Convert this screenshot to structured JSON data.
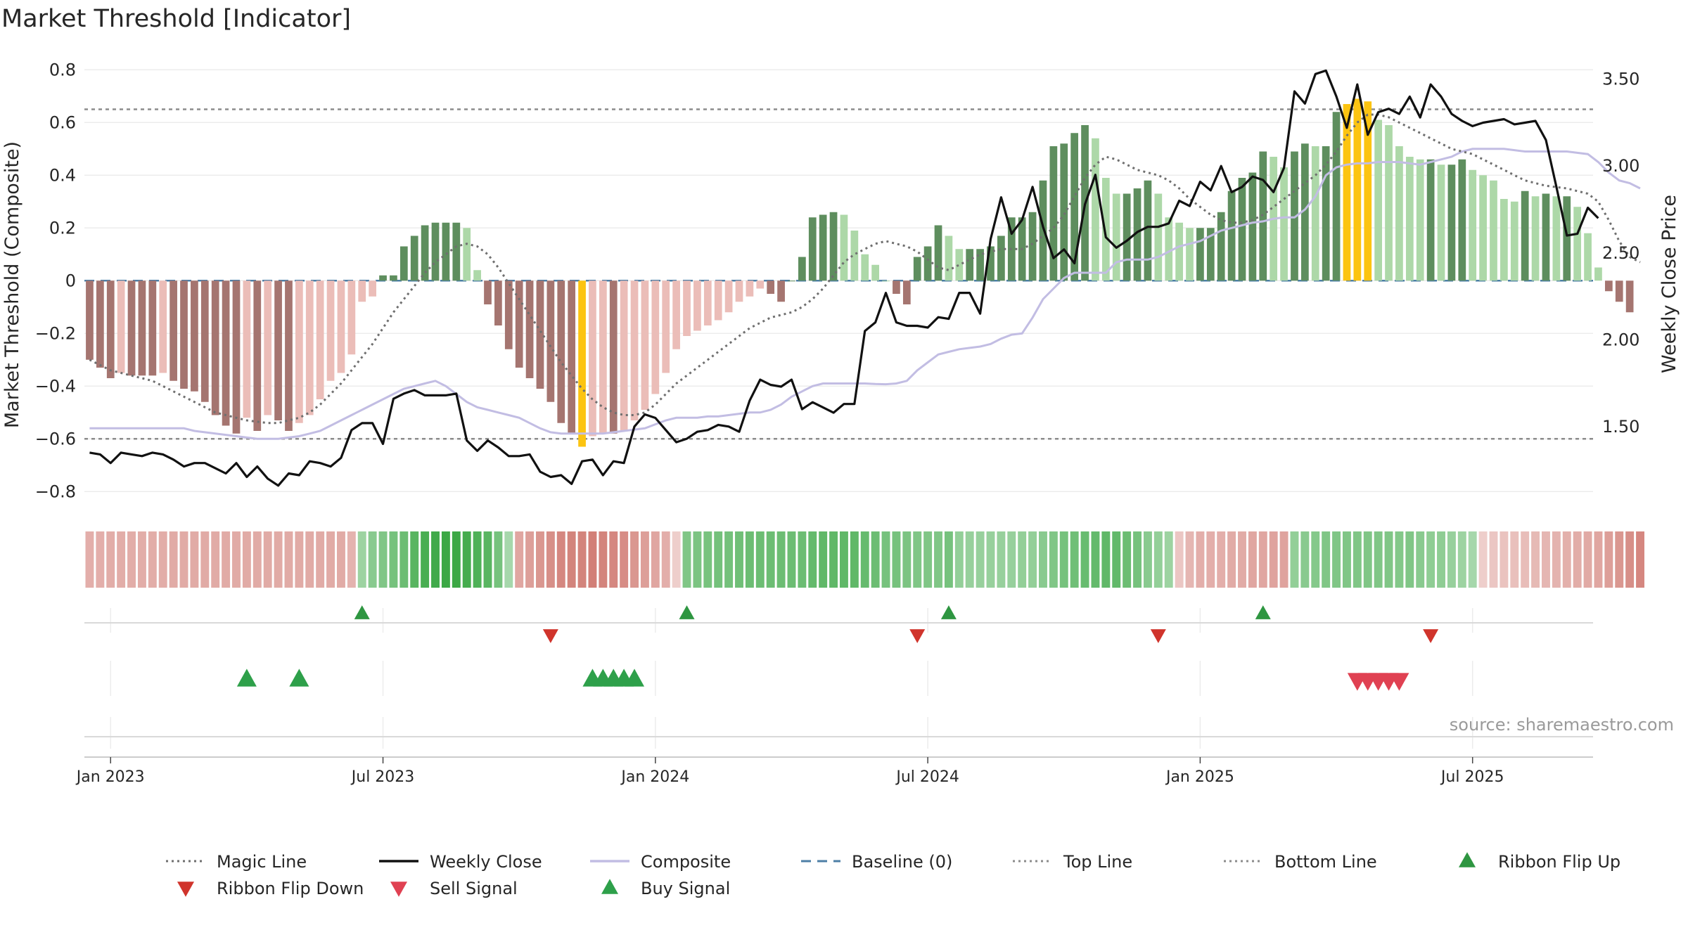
{
  "chart_data": {
    "type": "bar",
    "title": "Market Threshold [Indicator]",
    "source": "source: sharemaestro.com",
    "ylabel_left": "Market Threshold (Composite)",
    "ylabel_right": "Weekly Close Price",
    "ylim_left": [
      -0.85,
      0.83
    ],
    "ylim_right": [
      1.05,
      3.6
    ],
    "y_ticks_left": [
      {
        "v": 0.8,
        "label": "0.8"
      },
      {
        "v": 0.6,
        "label": "0.6"
      },
      {
        "v": 0.4,
        "label": "0.4"
      },
      {
        "v": 0.2,
        "label": "0.2"
      },
      {
        "v": 0,
        "label": "0"
      },
      {
        "v": -0.2,
        "label": "−0.2"
      },
      {
        "v": -0.4,
        "label": "−0.4"
      },
      {
        "v": -0.6,
        "label": "−0.6"
      },
      {
        "v": -0.8,
        "label": "−0.8"
      }
    ],
    "y_ticks_right": [
      {
        "v": 3.5,
        "label": "3.50"
      },
      {
        "v": 3.0,
        "label": "3.00"
      },
      {
        "v": 2.5,
        "label": "2.50"
      },
      {
        "v": 2.0,
        "label": "2.00"
      },
      {
        "v": 1.5,
        "label": "1.50"
      }
    ],
    "x_ticks": [
      {
        "week": 2,
        "label": "Jan 2023"
      },
      {
        "week": 28,
        "label": "Jul 2023"
      },
      {
        "week": 54,
        "label": "Jan 2024"
      },
      {
        "week": 80,
        "label": "Jul 2024"
      },
      {
        "week": 106,
        "label": "Jan 2025"
      },
      {
        "week": 132,
        "label": "Jul 2025"
      }
    ],
    "grid": true,
    "top_line": 0.65,
    "bottom_line": -0.6,
    "baseline": 0,
    "composite": [
      -0.56,
      -0.56,
      -0.56,
      -0.56,
      -0.56,
      -0.56,
      -0.56,
      -0.56,
      -0.56,
      -0.56,
      -0.57,
      -0.575,
      -0.58,
      -0.585,
      -0.59,
      -0.595,
      -0.6,
      -0.6,
      -0.6,
      -0.595,
      -0.59,
      -0.58,
      -0.57,
      -0.55,
      -0.53,
      -0.51,
      -0.49,
      -0.47,
      -0.45,
      -0.43,
      -0.41,
      -0.4,
      -0.39,
      -0.38,
      -0.4,
      -0.43,
      -0.46,
      -0.48,
      -0.49,
      -0.5,
      -0.51,
      -0.52,
      -0.54,
      -0.56,
      -0.575,
      -0.58,
      -0.58,
      -0.58,
      -0.58,
      -0.58,
      -0.575,
      -0.57,
      -0.565,
      -0.56,
      -0.545,
      -0.53,
      -0.52,
      -0.52,
      -0.52,
      -0.515,
      -0.515,
      -0.51,
      -0.505,
      -0.5,
      -0.5,
      -0.49,
      -0.47,
      -0.44,
      -0.42,
      -0.4,
      -0.39,
      -0.39,
      -0.39,
      -0.39,
      -0.39,
      -0.392,
      -0.393,
      -0.39,
      -0.38,
      -0.34,
      -0.31,
      -0.28,
      -0.27,
      -0.26,
      -0.255,
      -0.25,
      -0.24,
      -0.22,
      -0.205,
      -0.2,
      -0.14,
      -0.07,
      -0.03,
      0.01,
      0.03,
      0.03,
      0.03,
      0.03,
      0.07,
      0.08,
      0.08,
      0.08,
      0.09,
      0.11,
      0.13,
      0.14,
      0.15,
      0.17,
      0.19,
      0.2,
      0.21,
      0.22,
      0.225,
      0.235,
      0.24,
      0.24,
      0.27,
      0.32,
      0.4,
      0.43,
      0.44,
      0.445,
      0.445,
      0.45,
      0.45,
      0.45,
      0.445,
      0.44,
      0.45,
      0.46,
      0.47,
      0.49,
      0.5,
      0.5,
      0.5,
      0.5,
      0.495,
      0.49,
      0.49,
      0.49,
      0.49,
      0.49,
      0.485,
      0.48,
      0.45,
      0.41,
      0.38,
      0.37,
      0.35
    ],
    "series": [
      {
        "name": "Magic Line",
        "values": [
          -0.3,
          -0.32,
          -0.34,
          -0.35,
          -0.36,
          -0.37,
          -0.38,
          -0.4,
          -0.42,
          -0.44,
          -0.46,
          -0.48,
          -0.5,
          -0.51,
          -0.52,
          -0.53,
          -0.535,
          -0.54,
          -0.54,
          -0.53,
          -0.52,
          -0.5,
          -0.47,
          -0.43,
          -0.39,
          -0.34,
          -0.29,
          -0.24,
          -0.18,
          -0.12,
          -0.07,
          -0.02,
          0.03,
          0.07,
          0.1,
          0.13,
          0.14,
          0.13,
          0.1,
          0.05,
          -0.01,
          -0.07,
          -0.13,
          -0.19,
          -0.25,
          -0.31,
          -0.36,
          -0.41,
          -0.45,
          -0.48,
          -0.5,
          -0.51,
          -0.51,
          -0.5,
          -0.47,
          -0.43,
          -0.39,
          -0.36,
          -0.33,
          -0.3,
          -0.27,
          -0.24,
          -0.21,
          -0.18,
          -0.16,
          -0.14,
          -0.13,
          -0.12,
          -0.1,
          -0.07,
          -0.03,
          0.02,
          0.07,
          0.1,
          0.12,
          0.14,
          0.15,
          0.14,
          0.13,
          0.11,
          0.08,
          0.05,
          0.04,
          0.06,
          0.08,
          0.1,
          0.11,
          0.12,
          0.12,
          0.12,
          0.14,
          0.17,
          0.2,
          0.25,
          0.32,
          0.39,
          0.44,
          0.47,
          0.46,
          0.44,
          0.42,
          0.41,
          0.4,
          0.38,
          0.35,
          0.31,
          0.28,
          0.25,
          0.23,
          0.22,
          0.22,
          0.23,
          0.25,
          0.28,
          0.31,
          0.34,
          0.37,
          0.4,
          0.44,
          0.49,
          0.55,
          0.6,
          0.63,
          0.63,
          0.62,
          0.6,
          0.58,
          0.56,
          0.54,
          0.52,
          0.5,
          0.49,
          0.48,
          0.46,
          0.44,
          0.42,
          0.4,
          0.38,
          0.37,
          0.36,
          0.355,
          0.35,
          0.34,
          0.33,
          0.3,
          0.23,
          0.15,
          0.09,
          0.07
        ]
      },
      {
        "name": "Weekly Close",
        "values": [
          1.35,
          1.34,
          1.29,
          1.35,
          1.34,
          1.33,
          1.35,
          1.34,
          1.31,
          1.27,
          1.29,
          1.29,
          1.26,
          1.23,
          1.29,
          1.21,
          1.27,
          1.2,
          1.16,
          1.23,
          1.22,
          1.3,
          1.29,
          1.27,
          1.32,
          1.48,
          1.52,
          1.52,
          1.4,
          1.66,
          1.69,
          1.71,
          1.68,
          1.68,
          1.68,
          1.69,
          1.42,
          1.36,
          1.42,
          1.38,
          1.33,
          1.33,
          1.34,
          1.24,
          1.21,
          1.22,
          1.17,
          1.3,
          1.31,
          1.22,
          1.3,
          1.29,
          1.5,
          1.57,
          1.55,
          1.48,
          1.41,
          1.43,
          1.47,
          1.48,
          1.51,
          1.5,
          1.47,
          1.65,
          1.77,
          1.74,
          1.73,
          1.77,
          1.6,
          1.64,
          1.61,
          1.58,
          1.63,
          1.63,
          2.05,
          2.1,
          2.27,
          2.1,
          2.08,
          2.08,
          2.07,
          2.13,
          2.12,
          2.27,
          2.27,
          2.15,
          2.58,
          2.82,
          2.61,
          2.69,
          2.88,
          2.65,
          2.47,
          2.52,
          2.44,
          2.78,
          2.95,
          2.59,
          2.53,
          2.57,
          2.62,
          2.65,
          2.65,
          2.67,
          2.8,
          2.77,
          2.91,
          2.86,
          3.0,
          2.85,
          2.88,
          2.94,
          2.92,
          2.85,
          2.99,
          3.43,
          3.36,
          3.53,
          3.55,
          3.4,
          3.22,
          3.47,
          3.18,
          3.31,
          3.33,
          3.3,
          3.4,
          3.28,
          3.47,
          3.4,
          3.3,
          3.26,
          3.23,
          3.25,
          3.26,
          3.27,
          3.24,
          3.25,
          3.26,
          3.15,
          2.88,
          2.6,
          2.61,
          2.76,
          2.7
        ]
      },
      {
        "name": "Composite",
        "values": [
          -0.56,
          -0.56,
          -0.56,
          -0.56,
          -0.56,
          -0.56,
          -0.56,
          -0.56,
          -0.56,
          -0.56,
          -0.57,
          -0.575,
          -0.58,
          -0.585,
          -0.59,
          -0.595,
          -0.6,
          -0.6,
          -0.6,
          -0.595,
          -0.59,
          -0.58,
          -0.57,
          -0.55,
          -0.53,
          -0.51,
          -0.49,
          -0.47,
          -0.45,
          -0.43,
          -0.41,
          -0.4,
          -0.39,
          -0.38,
          -0.4,
          -0.43,
          -0.46,
          -0.48,
          -0.49,
          -0.5,
          -0.51,
          -0.52,
          -0.54,
          -0.56,
          -0.575,
          -0.58,
          -0.58,
          -0.58,
          -0.58,
          -0.58,
          -0.575,
          -0.57,
          -0.565,
          -0.56,
          -0.545,
          -0.53,
          -0.52,
          -0.52,
          -0.52,
          -0.515,
          -0.515,
          -0.51,
          -0.505,
          -0.5,
          -0.5,
          -0.49,
          -0.47,
          -0.44,
          -0.42,
          -0.4,
          -0.39,
          -0.39,
          -0.39,
          -0.39,
          -0.39,
          -0.392,
          -0.393,
          -0.39,
          -0.38,
          -0.34,
          -0.31,
          -0.28,
          -0.27,
          -0.26,
          -0.255,
          -0.25,
          -0.24,
          -0.22,
          -0.205,
          -0.2,
          -0.14,
          -0.07,
          -0.03,
          0.01,
          0.03,
          0.03,
          0.03,
          0.03,
          0.07,
          0.08,
          0.08,
          0.08,
          0.09,
          0.11,
          0.13,
          0.14,
          0.15,
          0.17,
          0.19,
          0.2,
          0.21,
          0.22,
          0.225,
          0.235,
          0.24,
          0.24,
          0.27,
          0.32,
          0.4,
          0.43,
          0.44,
          0.445,
          0.445,
          0.45,
          0.45,
          0.45,
          0.445,
          0.44,
          0.45,
          0.46,
          0.47,
          0.49,
          0.5,
          0.5,
          0.5,
          0.5,
          0.495,
          0.49,
          0.49,
          0.49,
          0.49,
          0.49,
          0.485,
          0.48,
          0.45,
          0.41,
          0.38,
          0.37,
          0.35
        ]
      },
      {
        "name": "Baseline (0)"
      },
      {
        "name": "Top Line"
      },
      {
        "name": "Bottom Line"
      },
      {
        "name": "Ribbon Flip Up"
      },
      {
        "name": "Ribbon Flip Down"
      },
      {
        "name": "Sell Signal"
      },
      {
        "name": "Buy Signal"
      }
    ],
    "bars": [
      -0.3,
      -0.33,
      -0.37,
      -0.35,
      -0.36,
      -0.36,
      -0.36,
      -0.35,
      -0.38,
      -0.41,
      -0.42,
      -0.46,
      -0.51,
      -0.55,
      -0.58,
      -0.52,
      -0.57,
      -0.51,
      -0.53,
      -0.57,
      -0.54,
      -0.51,
      -0.45,
      -0.38,
      -0.35,
      -0.28,
      -0.08,
      -0.06,
      0.02,
      0.02,
      0.13,
      0.17,
      0.21,
      0.22,
      0.22,
      0.22,
      0.2,
      0.04,
      -0.09,
      -0.17,
      -0.26,
      -0.33,
      -0.37,
      -0.41,
      -0.46,
      -0.54,
      -0.58,
      -0.63,
      -0.59,
      -0.58,
      -0.58,
      -0.57,
      -0.53,
      -0.49,
      -0.43,
      -0.35,
      -0.26,
      -0.21,
      -0.19,
      -0.17,
      -0.15,
      -0.12,
      -0.08,
      -0.06,
      -0.03,
      -0.05,
      -0.08,
      0.0,
      0.09,
      0.24,
      0.25,
      0.26,
      0.25,
      0.19,
      0.1,
      0.06,
      0.0,
      -0.05,
      -0.09,
      0.09,
      0.13,
      0.21,
      0.17,
      0.12,
      0.12,
      0.12,
      0.13,
      0.17,
      0.24,
      0.24,
      0.26,
      0.38,
      0.51,
      0.52,
      0.56,
      0.59,
      0.54,
      0.39,
      0.33,
      0.33,
      0.35,
      0.38,
      0.33,
      0.24,
      0.22,
      0.2,
      0.2,
      0.2,
      0.26,
      0.34,
      0.39,
      0.41,
      0.49,
      0.47,
      0.43,
      0.49,
      0.52,
      0.51,
      0.51,
      0.64,
      0.67,
      0.69,
      0.68,
      0.61,
      0.59,
      0.51,
      0.47,
      0.46,
      0.46,
      0.44,
      0.44,
      0.46,
      0.42,
      0.4,
      0.38,
      0.31,
      0.3,
      0.34,
      0.32,
      0.33,
      0.32,
      0.32,
      0.28,
      0.18,
      0.05,
      -0.04,
      -0.08,
      -0.12
    ],
    "bar_colors": {
      "neg_dark": "#a57570",
      "neg_light": "#ebbdb8",
      "pos_dark": "#5e8e5e",
      "pos_light": "#add8a8",
      "extreme": "#fcc411"
    },
    "ribbon": [
      -0.35,
      -0.35,
      -0.36,
      -0.36,
      -0.36,
      -0.36,
      -0.36,
      -0.36,
      -0.37,
      -0.37,
      -0.37,
      -0.37,
      -0.37,
      -0.37,
      -0.37,
      -0.37,
      -0.37,
      -0.37,
      -0.37,
      -0.37,
      -0.37,
      -0.37,
      -0.37,
      -0.37,
      -0.37,
      -0.32,
      0.35,
      0.45,
      0.5,
      0.55,
      0.6,
      0.7,
      0.78,
      0.82,
      0.85,
      0.85,
      0.8,
      0.75,
      0.7,
      0.55,
      0.3,
      -0.4,
      -0.45,
      -0.5,
      -0.55,
      -0.6,
      -0.62,
      -0.62,
      -0.65,
      -0.62,
      -0.6,
      -0.56,
      -0.5,
      -0.45,
      -0.4,
      -0.35,
      -0.15,
      0.5,
      0.52,
      0.54,
      0.56,
      0.56,
      0.58,
      0.6,
      0.6,
      0.6,
      0.6,
      0.6,
      0.6,
      0.64,
      0.66,
      0.66,
      0.66,
      0.66,
      0.63,
      0.6,
      0.55,
      0.55,
      0.52,
      0.5,
      0.5,
      0.5,
      0.55,
      0.4,
      0.38,
      0.38,
      0.38,
      0.38,
      0.38,
      0.4,
      0.4,
      0.45,
      0.5,
      0.55,
      0.58,
      0.62,
      0.64,
      0.66,
      0.65,
      0.6,
      0.55,
      0.45,
      0.4,
      0.35,
      -0.2,
      -0.3,
      -0.35,
      -0.35,
      -0.35,
      -0.37,
      -0.37,
      -0.4,
      -0.4,
      -0.42,
      -0.42,
      0.4,
      0.45,
      0.47,
      0.5,
      0.5,
      0.5,
      0.5,
      0.5,
      0.5,
      0.5,
      0.48,
      0.5,
      0.45,
      0.42,
      0.42,
      0.38,
      0.35,
      0.3,
      -0.15,
      -0.2,
      -0.22,
      -0.24,
      -0.26,
      -0.28,
      -0.3,
      -0.32,
      -0.34,
      -0.36,
      -0.38,
      -0.4,
      -0.45,
      -0.5,
      -0.55,
      -0.6
    ],
    "ribbon_colors": {
      "positive": "#33a43d",
      "negative": "#c4584e"
    },
    "ribbon_flip_up_weeks": [
      26,
      57,
      82,
      112
    ],
    "ribbon_flip_down_weeks": [
      44,
      79,
      102,
      128
    ],
    "buy_signal_weeks": [
      15,
      20,
      48,
      49,
      50,
      51,
      52
    ],
    "sell_signal_weeks": [
      121,
      122,
      123,
      124,
      125
    ],
    "colors": {
      "magic": "#6f6f6f",
      "close": "#111111",
      "composite": "#c2bde3",
      "baseline": "#4d7fa6",
      "topline": "#8c8c8c",
      "bottomline": "#8c8c8c",
      "flip_up": "#2e9641",
      "flip_down": "#d0342c",
      "sell": "#e04152",
      "buy": "#2ea04a",
      "grid": "#ececec",
      "text": "#262626"
    },
    "legend_placement": "bottom",
    "legend": [
      {
        "label": "Magic Line",
        "kind": "dotted",
        "color": "#6f6f6f"
      },
      {
        "label": "Weekly Close",
        "kind": "solid",
        "color": "#111111"
      },
      {
        "label": "Composite",
        "kind": "solid",
        "color": "#c2bde3"
      },
      {
        "label": "Baseline (0)",
        "kind": "dash",
        "color": "#4d7fa6"
      },
      {
        "label": "Top Line",
        "kind": "dotted",
        "color": "#8c8c8c"
      },
      {
        "label": "Bottom Line",
        "kind": "dotted",
        "color": "#8c8c8c"
      },
      {
        "label": "Ribbon Flip Up",
        "kind": "tri-up",
        "color": "#2e9641"
      },
      {
        "label": "Ribbon Flip Down",
        "kind": "tri-down",
        "color": "#d0342c"
      },
      {
        "label": "Sell Signal",
        "kind": "tri-down",
        "color": "#e04152"
      },
      {
        "label": "Buy Signal",
        "kind": "tri-up",
        "color": "#2ea04a"
      }
    ]
  }
}
